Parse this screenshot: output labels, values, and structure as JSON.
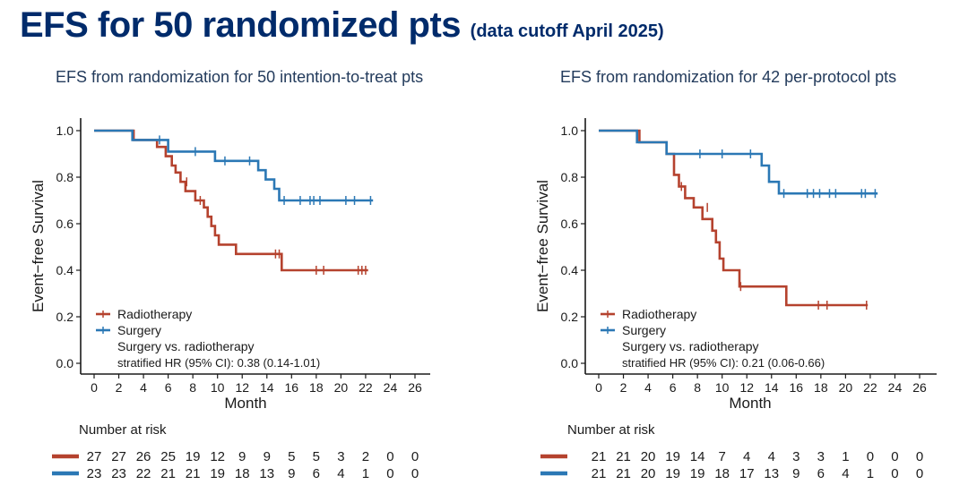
{
  "slide": {
    "title": "EFS for 50 randomized pts",
    "subtitle": "(data cutoff April 2025)"
  },
  "colors": {
    "radiotherapy": "#b5422e",
    "surgery": "#2b78b5",
    "title": "#002b6b"
  },
  "chart_data": [
    {
      "type": "line",
      "subtype": "kaplan-meier",
      "title": "EFS from randomization  for 50 intention-to-treat pts",
      "xlabel": "Month",
      "ylabel": "Event−free Survival",
      "xlim": [
        0,
        26
      ],
      "ylim": [
        0,
        1
      ],
      "xticks": [
        "0",
        "2",
        "4",
        "6",
        "8",
        "10",
        "12",
        "14",
        "16",
        "18",
        "20",
        "22",
        "24",
        "26"
      ],
      "yticks": [
        "0.0",
        "0.2",
        "0.4",
        "0.6",
        "0.8",
        "1.0"
      ],
      "grid": false,
      "legend_position": "bottom-left",
      "series": [
        {
          "name": "Radiotherapy",
          "color": "#b5422e",
          "x": [
            0,
            3.2,
            5.1,
            5.8,
            6.3,
            6.6,
            7.0,
            7.4,
            8.2,
            8.9,
            9.2,
            9.5,
            9.8,
            10.1,
            11.5,
            15.2,
            22.2
          ],
          "y": [
            1.0,
            0.96,
            0.93,
            0.89,
            0.85,
            0.82,
            0.78,
            0.74,
            0.7,
            0.67,
            0.63,
            0.59,
            0.55,
            0.51,
            0.47,
            0.4,
            0.4
          ],
          "censor_x": [
            7.5,
            8.6,
            14.7,
            15.0,
            18.0,
            18.6,
            21.4,
            21.7,
            22.0
          ],
          "censor_y": [
            0.78,
            0.7,
            0.47,
            0.47,
            0.4,
            0.4,
            0.4,
            0.4,
            0.4
          ]
        },
        {
          "name": "Surgery",
          "color": "#2b78b5",
          "x": [
            0,
            3.1,
            6.0,
            9.8,
            13.3,
            13.9,
            14.6,
            15.0,
            22.6
          ],
          "y": [
            1.0,
            0.96,
            0.91,
            0.87,
            0.83,
            0.79,
            0.75,
            0.7,
            0.7
          ],
          "censor_x": [
            5.3,
            8.2,
            10.6,
            12.6,
            15.4,
            16.7,
            17.5,
            17.8,
            18.3,
            20.4,
            21.1,
            22.4
          ],
          "censor_y": [
            0.96,
            0.91,
            0.87,
            0.87,
            0.7,
            0.7,
            0.7,
            0.7,
            0.7,
            0.7,
            0.7,
            0.7
          ]
        }
      ],
      "annotation": [
        "Surgery vs. radiotherapy",
        "stratified HR (95% CI): 0.38 (0.14-1.01)"
      ],
      "risk_table": {
        "label": "Number at risk",
        "rows": [
          {
            "name": "Radiotherapy",
            "color": "#b5422e",
            "values": [
              "27",
              "27",
              "26",
              "25",
              "19",
              "12",
              "9",
              "9",
              "5",
              "5",
              "3",
              "2",
              "0",
              "0"
            ]
          },
          {
            "name": "Surgery",
            "color": "#2b78b5",
            "values": [
              "23",
              "23",
              "22",
              "21",
              "21",
              "19",
              "18",
              "13",
              "9",
              "6",
              "4",
              "1",
              "0",
              "0"
            ]
          }
        ]
      }
    },
    {
      "type": "line",
      "subtype": "kaplan-meier",
      "title": "EFS from randomization for 42 per-protocol pts",
      "xlabel": "Month",
      "ylabel": "Event−free Survival",
      "xlim": [
        0,
        26
      ],
      "ylim": [
        0,
        1
      ],
      "xticks": [
        "0",
        "2",
        "4",
        "6",
        "8",
        "10",
        "12",
        "14",
        "16",
        "18",
        "20",
        "22",
        "24",
        "26"
      ],
      "yticks": [
        "0.0",
        "0.2",
        "0.4",
        "0.6",
        "0.8",
        "1.0"
      ],
      "grid": false,
      "legend_position": "bottom-left",
      "series": [
        {
          "name": "Radiotherapy",
          "color": "#b5422e",
          "x": [
            0,
            3.3,
            5.5,
            6.1,
            6.5,
            7.0,
            7.7,
            8.4,
            9.2,
            9.5,
            9.8,
            10.1,
            11.4,
            15.2,
            21.8
          ],
          "y": [
            1.0,
            0.95,
            0.9,
            0.81,
            0.76,
            0.71,
            0.67,
            0.62,
            0.57,
            0.52,
            0.45,
            0.4,
            0.33,
            0.25,
            0.25
          ],
          "censor_x": [
            6.7,
            8.8,
            11.5,
            17.8,
            18.5,
            21.7
          ],
          "censor_y": [
            0.76,
            0.67,
            0.33,
            0.25,
            0.25,
            0.25
          ]
        },
        {
          "name": "Surgery",
          "color": "#2b78b5",
          "x": [
            0,
            3.1,
            5.5,
            13.2,
            13.8,
            14.6,
            22.6
          ],
          "y": [
            1.0,
            0.95,
            0.9,
            0.85,
            0.78,
            0.73,
            0.73
          ],
          "censor_x": [
            8.2,
            10.0,
            12.3,
            15.0,
            16.9,
            17.4,
            17.9,
            18.7,
            19.2,
            21.3,
            21.6,
            22.4
          ],
          "censor_y": [
            0.9,
            0.9,
            0.9,
            0.73,
            0.73,
            0.73,
            0.73,
            0.73,
            0.73,
            0.73,
            0.73,
            0.73
          ]
        }
      ],
      "annotation": [
        "Surgery vs. radiotherapy",
        "stratified HR (95% CI): 0.21 (0.06-0.66)"
      ],
      "risk_table": {
        "label": "Number at risk",
        "rows": [
          {
            "name": "Radiotherapy",
            "color": "#b5422e",
            "values": [
              "21",
              "21",
              "20",
              "19",
              "14",
              "7",
              "4",
              "4",
              "3",
              "3",
              "1",
              "0",
              "0",
              "0"
            ]
          },
          {
            "name": "Surgery",
            "color": "#2b78b5",
            "values": [
              "21",
              "21",
              "20",
              "19",
              "19",
              "18",
              "17",
              "13",
              "9",
              "6",
              "4",
              "1",
              "0",
              "0"
            ]
          }
        ]
      }
    }
  ]
}
